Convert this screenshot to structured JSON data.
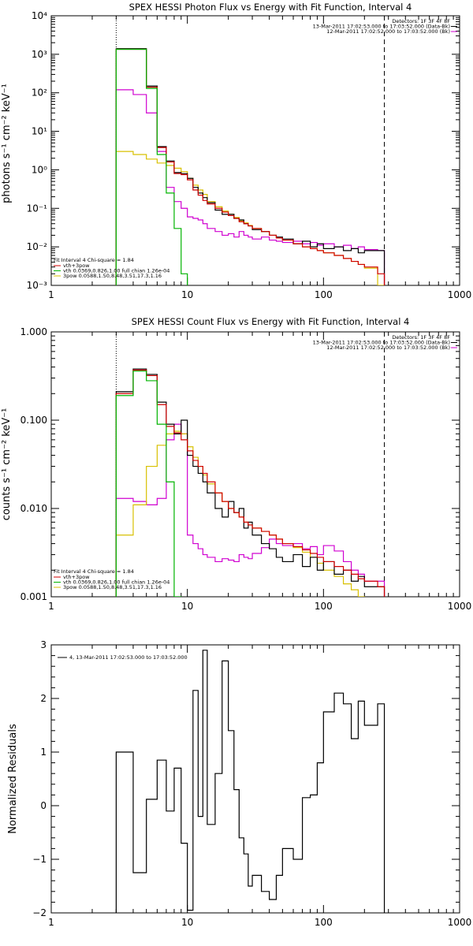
{
  "chart_data": [
    {
      "type": "line",
      "title": "SPEX HESSI Photon Flux vs Energy with Fit Function, Interval 4",
      "ylabel": "photons s⁻¹ cm⁻² keV⁻¹",
      "xscale": "log",
      "yscale": "log",
      "xlim": [
        1,
        1000
      ],
      "ylim": [
        0.001,
        10000
      ],
      "xticks": [
        "1",
        "10",
        "100",
        "1000"
      ],
      "yticks": [
        "10⁻³",
        "10⁻²",
        "10⁻¹",
        "10⁰",
        "10¹",
        "10²",
        "10³",
        "10⁴"
      ],
      "energy_lines": {
        "dotted": 3,
        "dashed": 280
      },
      "legend_right": [
        "Detectors: 1F 3F 4F 8F",
        "13-Mar-2011 17:02:53.000 to 17:03:52.000 (Data-Bk)",
        "12-Mar-2011 17:02:52.000 to 17:03:52.000 (Bk)"
      ],
      "legend_left": {
        "header": "Fit Interval  4    Chi-square = 1.84",
        "entries": [
          "vth+3pow",
          "vth 0.0369,0.826,1.00  full chian 1.26e-04",
          "3pow 0.0588,1.50,8.48,3.51,17.3,1.16"
        ]
      },
      "series": [
        {
          "label": "Data-Bk",
          "color": "#000000",
          "edges": [
            3,
            4,
            5,
            6,
            7,
            8,
            9,
            10,
            11,
            12,
            13,
            14,
            16,
            18,
            20,
            22,
            24,
            26,
            28,
            30,
            35,
            40,
            45,
            50,
            60,
            70,
            80,
            90,
            100,
            120,
            140,
            160,
            180,
            200,
            250,
            280
          ],
          "values": [
            1400,
            1400,
            150,
            4,
            1.7,
            0.85,
            0.8,
            0.6,
            0.35,
            0.25,
            0.19,
            0.14,
            0.09,
            0.07,
            0.07,
            0.055,
            0.05,
            0.04,
            0.035,
            0.028,
            0.025,
            0.02,
            0.018,
            0.016,
            0.012,
            0.014,
            0.01,
            0.012,
            0.009,
            0.01,
            0.008,
            0.009,
            0.007,
            0.008,
            0.008
          ]
        },
        {
          "label": "vth+3pow",
          "color": "#d00000",
          "edges": [
            3,
            4,
            5,
            6,
            7,
            8,
            9,
            10,
            11,
            12,
            13,
            14,
            16,
            18,
            20,
            22,
            24,
            26,
            28,
            30,
            35,
            40,
            45,
            50,
            60,
            70,
            80,
            90,
            100,
            120,
            140,
            160,
            180,
            200,
            250,
            280
          ],
          "values": [
            1350,
            1350,
            140,
            3.8,
            1.6,
            0.8,
            0.75,
            0.55,
            0.3,
            0.22,
            0.16,
            0.13,
            0.1,
            0.08,
            0.065,
            0.055,
            0.045,
            0.04,
            0.035,
            0.03,
            0.025,
            0.02,
            0.017,
            0.015,
            0.012,
            0.01,
            0.009,
            0.008,
            0.007,
            0.006,
            0.005,
            0.0042,
            0.0035,
            0.003,
            0.002
          ]
        },
        {
          "label": "vth",
          "color": "#00b400",
          "edges": [
            3,
            4,
            5,
            6,
            7,
            8,
            9,
            10
          ],
          "values": [
            1350,
            1350,
            130,
            2.5,
            0.25,
            0.03,
            0.002
          ]
        },
        {
          "label": "3pow",
          "color": "#d8c000",
          "edges": [
            3,
            4,
            5,
            6,
            7,
            8,
            9,
            10,
            11,
            12,
            13,
            14,
            16,
            18,
            20,
            22,
            24,
            26,
            28,
            30,
            35,
            40,
            45,
            50,
            60,
            70,
            80,
            90,
            100,
            120,
            140,
            160,
            180,
            200,
            250,
            280
          ],
          "values": [
            3,
            2.5,
            1.9,
            1.5,
            1.3,
            1.1,
            0.9,
            0.6,
            0.4,
            0.3,
            0.23,
            0.15,
            0.11,
            0.085,
            0.07,
            0.058,
            0.048,
            0.042,
            0.036,
            0.03,
            0.025,
            0.02,
            0.017,
            0.015,
            0.012,
            0.01,
            0.009,
            0.008,
            0.007,
            0.006,
            0.005,
            0.0042,
            0.0035,
            0.0028,
            0.001
          ]
        },
        {
          "label": "Bk",
          "color": "#d000d0",
          "edges": [
            3,
            4,
            5,
            6,
            7,
            8,
            9,
            10,
            11,
            12,
            13,
            14,
            16,
            18,
            20,
            22,
            24,
            26,
            28,
            30,
            35,
            40,
            45,
            50,
            60,
            70,
            80,
            90,
            100,
            120,
            140,
            160,
            180,
            200,
            250,
            280
          ],
          "values": [
            120,
            90,
            30,
            3,
            0.35,
            0.15,
            0.1,
            0.06,
            0.055,
            0.05,
            0.04,
            0.03,
            0.025,
            0.02,
            0.022,
            0.018,
            0.025,
            0.02,
            0.018,
            0.016,
            0.018,
            0.015,
            0.014,
            0.013,
            0.014,
            0.012,
            0.013,
            0.011,
            0.012,
            0.01,
            0.011,
            0.009,
            0.01,
            0.0085,
            0.008
          ]
        }
      ]
    },
    {
      "type": "line",
      "title": "SPEX HESSI Count Flux vs Energy with Fit Function, Interval 4",
      "ylabel": "counts s⁻¹ cm⁻² keV⁻¹",
      "xscale": "log",
      "yscale": "log",
      "xlim": [
        1,
        1000
      ],
      "ylim": [
        0.001,
        1
      ],
      "xticks": [
        "1",
        "10",
        "100",
        "1000"
      ],
      "yticks": [
        "0.001",
        "0.010",
        "0.100",
        "1.000"
      ],
      "energy_lines": {
        "dotted": 3,
        "dashed": 280
      },
      "legend_right": [
        "Detectors: 1F 3F 4F 8F",
        "13-Mar-2011 17:02:53.000 to 17:03:52.000 (Data-Bk)",
        "12-Mar-2011 17:02:52.000 to 17:03:52.000 (Bk)"
      ],
      "legend_left": {
        "header": "Fit Interval  4    Chi-square = 1.84",
        "entries": [
          "vth+3pow",
          "vth 0.0369,0.826,1.00  full chian 1.26e-04",
          "3pow 0.0588,1.50,8.48,3.51,17.3,1.16"
        ]
      },
      "series": [
        {
          "label": "Data-Bk",
          "color": "#000000",
          "edges": [
            3,
            4,
            5,
            6,
            7,
            8,
            9,
            10,
            11,
            12,
            13,
            14,
            16,
            18,
            20,
            22,
            24,
            26,
            28,
            30,
            35,
            40,
            45,
            50,
            60,
            70,
            80,
            90,
            100,
            120,
            140,
            160,
            180,
            200,
            250,
            280
          ],
          "values": [
            0.21,
            0.38,
            0.33,
            0.16,
            0.09,
            0.07,
            0.1,
            0.04,
            0.03,
            0.025,
            0.02,
            0.015,
            0.01,
            0.008,
            0.012,
            0.009,
            0.01,
            0.006,
            0.007,
            0.005,
            0.004,
            0.0035,
            0.0028,
            0.0025,
            0.003,
            0.0022,
            0.0028,
            0.002,
            0.0025,
            0.0018,
            0.002,
            0.0015,
            0.0017,
            0.0013,
            0.0013
          ]
        },
        {
          "label": "vth+3pow",
          "color": "#d00000",
          "edges": [
            3,
            4,
            5,
            6,
            7,
            8,
            9,
            10,
            11,
            12,
            13,
            14,
            16,
            18,
            20,
            22,
            24,
            26,
            28,
            30,
            35,
            40,
            45,
            50,
            60,
            70,
            80,
            90,
            100,
            120,
            140,
            160,
            180,
            200,
            250,
            280
          ],
          "values": [
            0.2,
            0.37,
            0.32,
            0.15,
            0.085,
            0.072,
            0.06,
            0.045,
            0.035,
            0.03,
            0.025,
            0.02,
            0.015,
            0.012,
            0.01,
            0.009,
            0.008,
            0.007,
            0.0065,
            0.006,
            0.0055,
            0.005,
            0.0045,
            0.004,
            0.0037,
            0.0034,
            0.0031,
            0.0028,
            0.0025,
            0.0022,
            0.002,
            0.0018,
            0.0016,
            0.0015,
            0.0013
          ]
        },
        {
          "label": "vth",
          "color": "#00b400",
          "edges": [
            3,
            4,
            5,
            6,
            7,
            8,
            9
          ],
          "values": [
            0.19,
            0.36,
            0.28,
            0.09,
            0.02,
            0.001
          ]
        },
        {
          "label": "3pow",
          "color": "#d8c000",
          "edges": [
            3,
            4,
            5,
            6,
            7,
            8,
            9,
            10,
            11,
            12,
            13,
            14,
            16,
            18,
            20,
            22,
            24,
            26,
            28,
            30,
            35,
            40,
            45,
            50,
            60,
            70,
            80,
            90,
            100,
            120,
            140,
            160,
            180,
            200
          ],
          "values": [
            0.005,
            0.011,
            0.03,
            0.052,
            0.07,
            0.075,
            0.07,
            0.05,
            0.038,
            0.03,
            0.024,
            0.019,
            0.015,
            0.012,
            0.01,
            0.009,
            0.008,
            0.007,
            0.0065,
            0.006,
            0.0055,
            0.005,
            0.0045,
            0.004,
            0.0036,
            0.0032,
            0.0028,
            0.0024,
            0.002,
            0.0017,
            0.0014,
            0.0012,
            0.001
          ]
        },
        {
          "label": "Bk",
          "color": "#d000d0",
          "edges": [
            3,
            4,
            5,
            6,
            7,
            8,
            9,
            10,
            11,
            12,
            13,
            14,
            16,
            18,
            20,
            22,
            24,
            26,
            28,
            30,
            35,
            40,
            45,
            50,
            60,
            70,
            80,
            90,
            100,
            120,
            140,
            160,
            180,
            200,
            250,
            280
          ],
          "values": [
            0.013,
            0.012,
            0.011,
            0.013,
            0.06,
            0.09,
            0.07,
            0.005,
            0.004,
            0.0035,
            0.003,
            0.0028,
            0.0025,
            0.0027,
            0.0026,
            0.0025,
            0.003,
            0.0028,
            0.0027,
            0.0031,
            0.0036,
            0.0045,
            0.004,
            0.0038,
            0.004,
            0.0035,
            0.0037,
            0.003,
            0.0038,
            0.0033,
            0.0025,
            0.002,
            0.0018,
            0.0015,
            0.0015
          ]
        }
      ]
    },
    {
      "type": "line",
      "title": "",
      "ylabel": "Normalized Residuals",
      "xscale": "log",
      "yscale": "linear",
      "xlim": [
        1,
        1000
      ],
      "ylim": [
        -2,
        3
      ],
      "xticks": [
        "1",
        "10",
        "100",
        "1000"
      ],
      "yticks": [
        "−2",
        "−1",
        "0",
        "1",
        "2",
        "3"
      ],
      "legend_right": [],
      "legend_left": {
        "header": "",
        "entries": [
          "4, 13-Mar-2011 17:02:53.000 to 17:03:52.000"
        ]
      },
      "series": [
        {
          "label": "residuals",
          "color": "#000000",
          "edges": [
            3,
            4,
            5,
            6,
            7,
            8,
            9,
            10,
            11,
            12,
            13,
            14,
            16,
            18,
            20,
            22,
            24,
            26,
            28,
            30,
            35,
            40,
            45,
            50,
            60,
            70,
            80,
            90,
            100,
            120,
            140,
            160,
            180,
            200,
            250,
            280
          ],
          "values": [
            1.0,
            -1.25,
            0.12,
            0.85,
            -0.1,
            0.7,
            -0.7,
            -1.95,
            2.15,
            -0.2,
            2.9,
            -0.35,
            0.6,
            2.7,
            1.4,
            0.3,
            -0.6,
            -0.9,
            -1.5,
            -1.3,
            -1.6,
            -1.75,
            -1.3,
            -0.8,
            -1.0,
            0.15,
            0.2,
            0.8,
            1.75,
            2.1,
            1.9,
            1.25,
            1.95,
            1.5,
            1.9
          ]
        }
      ]
    }
  ]
}
